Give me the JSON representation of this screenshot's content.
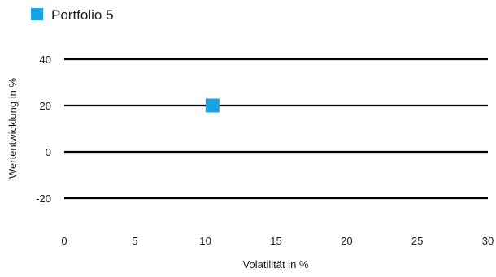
{
  "chart_data": {
    "type": "scatter",
    "xlabel": "Volatilität in %",
    "ylabel": "Wertentwicklung in %",
    "xlim": [
      0,
      30
    ],
    "ylim": [
      -20,
      40
    ],
    "x_ticks": [
      0,
      5,
      10,
      15,
      20,
      25,
      30
    ],
    "y_ticks": [
      -20,
      0,
      20,
      40
    ],
    "grid": "horizontal",
    "legend_position": "top-left",
    "series": [
      {
        "name": "Portfolio 5",
        "color": "#1aa3e0",
        "marker": "square",
        "points": [
          {
            "x": 10.5,
            "y": 20
          }
        ]
      }
    ]
  }
}
